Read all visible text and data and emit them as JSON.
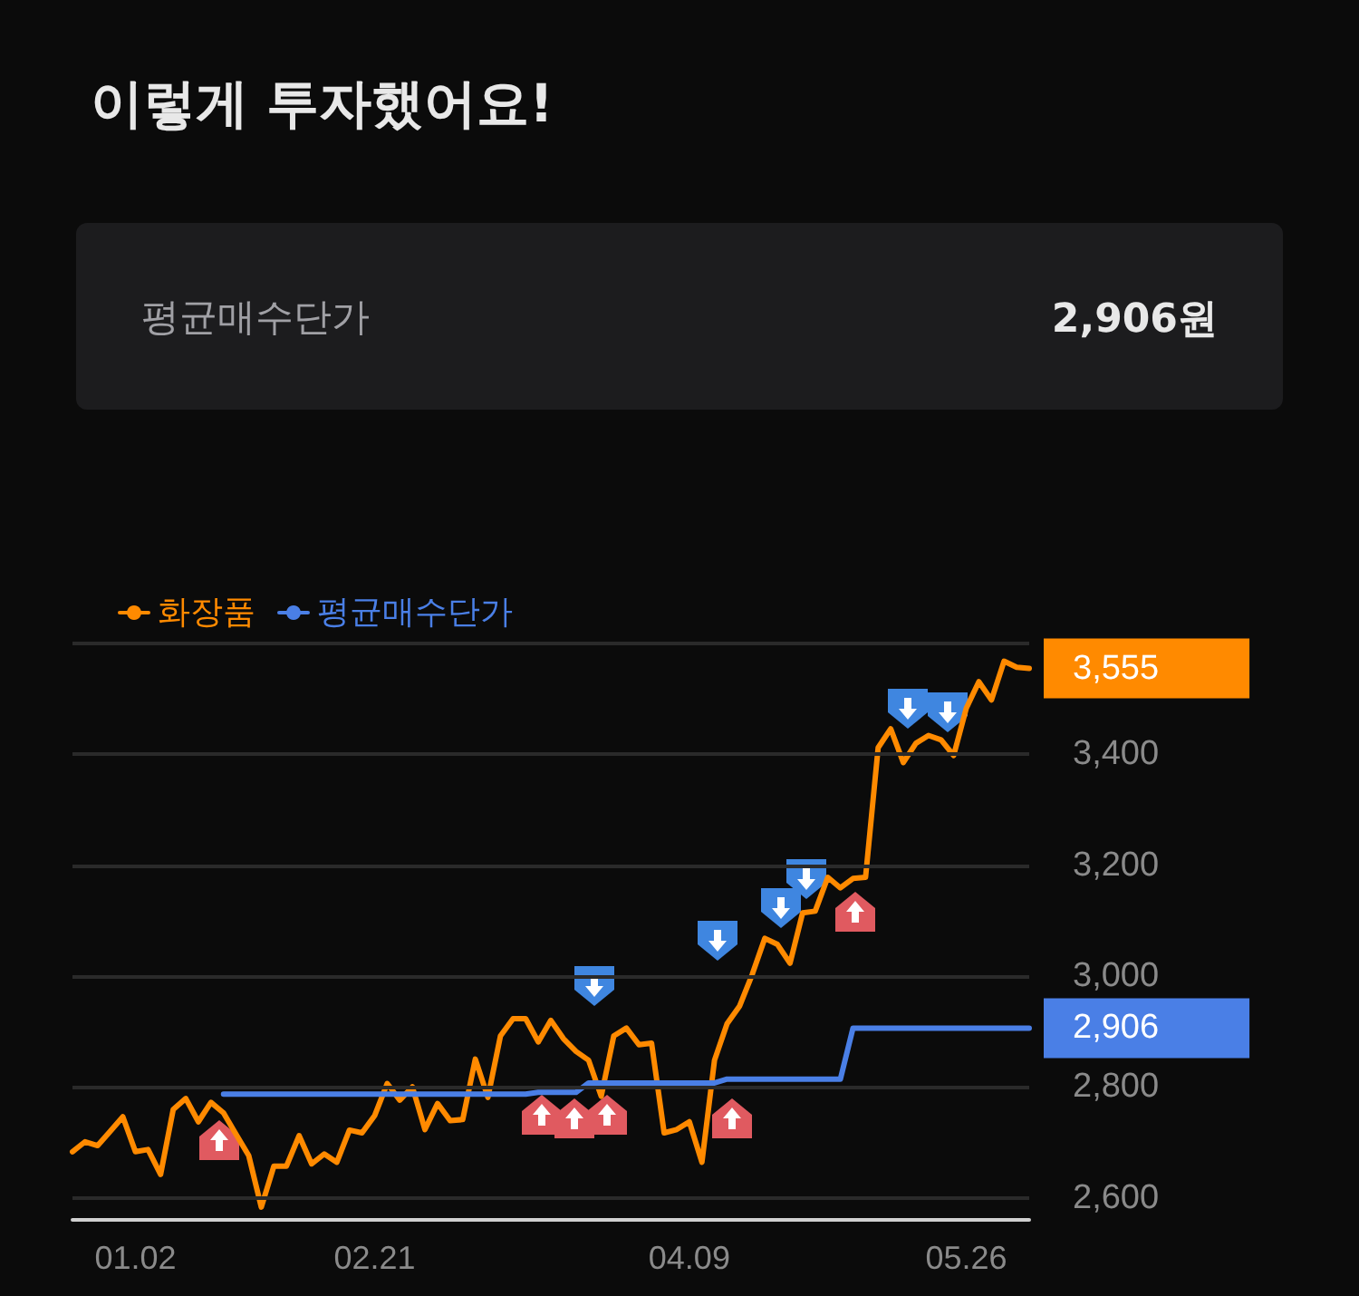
{
  "chart_data": {
    "type": "line",
    "title": "이렇게 투자했어요!",
    "annotations": [
      "평균매수단가",
      "2,906원"
    ],
    "categories": [
      null,
      null,
      null,
      null,
      null,
      "01.02",
      null,
      null,
      null,
      null,
      null,
      null,
      null,
      null,
      null,
      null,
      null,
      null,
      null,
      null,
      null,
      null,
      null,
      null,
      "02.21",
      null,
      null,
      null,
      null,
      null,
      null,
      null,
      null,
      null,
      null,
      null,
      null,
      null,
      null,
      null,
      null,
      null,
      null,
      null,
      null,
      null,
      null,
      null,
      null,
      "04.09",
      null,
      null,
      null,
      null,
      null,
      null,
      null,
      null,
      null,
      null,
      null,
      null,
      null,
      null,
      null,
      null,
      null,
      null,
      null,
      null,
      null,
      "05.26",
      null,
      null,
      null,
      null,
      null
    ],
    "series": [
      {
        "name": "화장품",
        "color": "#ff8a00",
        "values": [
          2683,
          2701,
          2694,
          2720,
          2746,
          2683,
          2687,
          2642,
          2759,
          2779,
          2737,
          2772,
          2753,
          2714,
          2676,
          2583,
          2657,
          2657,
          2712,
          2661,
          2679,
          2664,
          2722,
          2717,
          2748,
          2806,
          2776,
          2800,
          2723,
          2770,
          2739,
          2741,
          2850,
          2781,
          2892,
          2923,
          2923,
          2881,
          2920,
          2887,
          2864,
          2848,
          2783,
          2892,
          2906,
          2876,
          2879,
          2717,
          2723,
          2737,
          2664,
          2848,
          2914,
          2946,
          3003,
          3068,
          3057,
          3023,
          3114,
          3117,
          3178,
          3159,
          3176,
          3178,
          3412,
          3446,
          3385,
          3420,
          3434,
          3426,
          3398,
          3483,
          3531,
          3498,
          3568,
          3557,
          3555
        ],
        "value_labels": [
          null,
          null,
          null,
          null,
          null,
          null,
          null,
          null,
          null,
          null,
          null,
          null,
          null,
          null,
          null,
          null,
          null,
          null,
          null,
          null,
          null,
          null,
          null,
          null,
          null,
          null,
          null,
          null,
          null,
          null,
          null,
          null,
          null,
          null,
          null,
          null,
          null,
          null,
          null,
          null,
          null,
          null,
          null,
          null,
          null,
          null,
          null,
          null,
          null,
          null,
          null,
          null,
          null,
          null,
          null,
          null,
          null,
          null,
          null,
          null,
          null,
          null,
          null,
          null,
          null,
          null,
          null,
          null,
          null,
          null,
          null,
          null,
          null,
          null,
          null,
          null,
          "3,555"
        ]
      },
      {
        "name": "평균매수단가",
        "color": "#4a7fe6",
        "values": [
          null,
          null,
          null,
          null,
          null,
          null,
          null,
          null,
          null,
          null,
          null,
          null,
          2787,
          2787,
          2787,
          2787,
          2787,
          2787,
          2787,
          2787,
          2787,
          2787,
          2787,
          2787,
          2787,
          2787,
          2787,
          2787,
          2787,
          2787,
          2787,
          2787,
          2787,
          2787,
          2787,
          2787,
          2787,
          2790,
          2790,
          2790,
          2790,
          2807,
          2807,
          2807,
          2807,
          2807,
          2807,
          2807,
          2807,
          2807,
          2807,
          2807,
          2814,
          2814,
          2814,
          2814,
          2814,
          2814,
          2814,
          2814,
          2814,
          2814,
          2906,
          2906,
          2906,
          2906,
          2906,
          2906,
          2906,
          2906,
          2906,
          2906,
          2906,
          2906,
          2906,
          2906,
          2906
        ],
        "value_labels": [
          null,
          null,
          null,
          null,
          null,
          null,
          null,
          null,
          null,
          null,
          null,
          null,
          null,
          null,
          null,
          null,
          null,
          null,
          null,
          null,
          null,
          null,
          null,
          null,
          null,
          null,
          null,
          null,
          null,
          null,
          null,
          null,
          null,
          null,
          null,
          null,
          null,
          null,
          null,
          null,
          null,
          null,
          null,
          null,
          null,
          null,
          null,
          null,
          null,
          null,
          null,
          null,
          null,
          null,
          null,
          null,
          null,
          null,
          null,
          null,
          null,
          null,
          null,
          null,
          null,
          null,
          null,
          null,
          null,
          null,
          null,
          null,
          null,
          null,
          null,
          null,
          "2,906"
        ]
      }
    ],
    "ylim": [
      2560,
      3600
    ],
    "yticks": [
      {
        "value": 2600,
        "label": "2,600"
      },
      {
        "value": 2800,
        "label": "2,800"
      },
      {
        "value": 3000,
        "label": "3,000"
      },
      {
        "value": 3200,
        "label": "3,200"
      },
      {
        "value": 3400,
        "label": "3,400"
      },
      {
        "value": 3600,
        "label": null
      }
    ],
    "grid": "y",
    "legend": "top left",
    "marker": "none",
    "line_style": "solid"
  }
}
